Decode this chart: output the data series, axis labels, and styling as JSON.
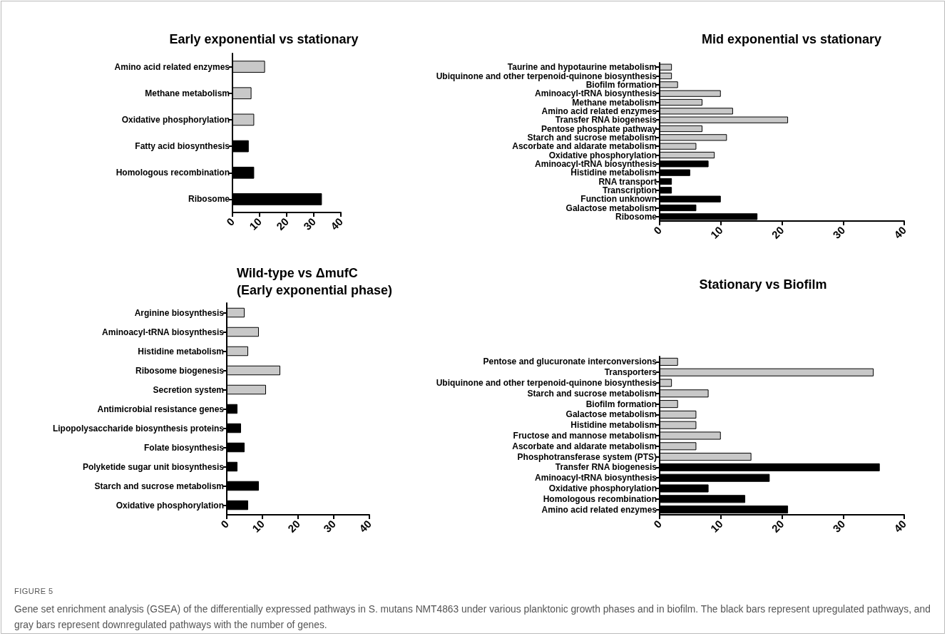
{
  "chart_data": [
    {
      "type": "bar",
      "orientation": "horizontal",
      "title": "Early exponential vs stationary",
      "categories": [
        "Amino acid related enzymes",
        "Methane metabolism",
        "Oxidative phosphorylation",
        "Fatty acid biosynthesis",
        "Homologous recombination",
        "Ribosome"
      ],
      "values": [
        12,
        7,
        8,
        6,
        8,
        33
      ],
      "colors": [
        "#c8c8c8",
        "#c8c8c8",
        "#c8c8c8",
        "#000000",
        "#000000",
        "#000000"
      ],
      "xlim": [
        0,
        40
      ],
      "xticks": [
        0,
        10,
        20,
        30,
        40
      ],
      "annotations": [
        "FIGURE 5",
        "Gene set enrichment analysis (GSEA) of the differentially expressed pathways in S. mutans NMT4863 under various planktonic growth phases and in biofilm. The black bars represent upregulated pathways, and gray bars represent downregulated pathways with the number of genes."
      ]
    },
    {
      "type": "bar",
      "orientation": "horizontal",
      "title": "Mid exponential vs stationary",
      "categories": [
        "Taurine and hypotaurine metabolism",
        "Ubiquinone and other terpenoid-quinone biosynthesis",
        "Biofilm formation",
        "Aminoacyl-tRNA biosynthesis",
        "Methane metabolism",
        "Amino acid related enzymes",
        "Transfer RNA biogenesis",
        "Pentose phosphate pathway",
        "Starch and sucrose metabolism",
        "Ascorbate and aldarate metabolism",
        "Oxidative phosphorylation",
        "Aminoacyl-tRNA biosynthesis",
        "Histidine metabolism",
        "RNA transport",
        "Transcription",
        "Function unknown",
        "Galactose metabolism",
        "Ribosome"
      ],
      "values": [
        2,
        2,
        3,
        10,
        7,
        12,
        21,
        7,
        11,
        6,
        9,
        8,
        5,
        2,
        2,
        10,
        6,
        16
      ],
      "colors": [
        "#c8c8c8",
        "#c8c8c8",
        "#c8c8c8",
        "#c8c8c8",
        "#c8c8c8",
        "#c8c8c8",
        "#c8c8c8",
        "#c8c8c8",
        "#c8c8c8",
        "#c8c8c8",
        "#c8c8c8",
        "#000000",
        "#000000",
        "#000000",
        "#000000",
        "#000000",
        "#000000",
        "#000000"
      ],
      "xlim": [
        0,
        40
      ],
      "xticks": [
        0,
        10,
        20,
        30,
        40
      ]
    },
    {
      "type": "bar",
      "orientation": "horizontal",
      "title": "Wild-type vs ΔmufC\n(Early exponential phase)",
      "categories": [
        "Arginine biosynthesis",
        "Aminoacyl-tRNA biosynthesis",
        "Histidine metabolism",
        "Ribosome biogenesis",
        "Secretion system",
        "Antimicrobial resistance genes",
        "Lipopolysaccharide biosynthesis proteins",
        "Folate biosynthesis",
        "Polyketide sugar unit biosynthesis",
        "Starch and sucrose metabolism",
        "Oxidative phosphorylation"
      ],
      "values": [
        5,
        9,
        6,
        15,
        11,
        3,
        4,
        5,
        3,
        9,
        6
      ],
      "colors": [
        "#c8c8c8",
        "#c8c8c8",
        "#c8c8c8",
        "#c8c8c8",
        "#c8c8c8",
        "#000000",
        "#000000",
        "#000000",
        "#000000",
        "#000000",
        "#000000"
      ],
      "xlim": [
        0,
        40
      ],
      "xticks": [
        0,
        10,
        20,
        30,
        40
      ]
    },
    {
      "type": "bar",
      "orientation": "horizontal",
      "title": "Stationary vs Biofilm",
      "categories": [
        "Pentose and glucuronate interconversions",
        "Transporters",
        "Ubiquinone and other terpenoid-quinone biosynthesis",
        "Starch and sucrose metabolism",
        "Biofilm formation",
        "Galactose metabolism",
        "Histidine metabolism",
        "Fructose and mannose metabolism",
        "Ascorbate and aldarate metabolism",
        "Phosphotransferase system (PTS)",
        "Transfer RNA biogenesis",
        "Aminoacyl-tRNA biosynthesis",
        "Oxidative phosphorylation",
        "Homologous recombination",
        "Amino acid related enzymes"
      ],
      "values": [
        3,
        35,
        2,
        8,
        3,
        6,
        6,
        10,
        6,
        15,
        36,
        18,
        8,
        14,
        21
      ],
      "colors": [
        "#c8c8c8",
        "#c8c8c8",
        "#c8c8c8",
        "#c8c8c8",
        "#c8c8c8",
        "#c8c8c8",
        "#c8c8c8",
        "#c8c8c8",
        "#c8c8c8",
        "#c8c8c8",
        "#000000",
        "#000000",
        "#000000",
        "#000000",
        "#000000"
      ],
      "xlim": [
        0,
        40
      ],
      "xticks": [
        0,
        10,
        20,
        30,
        40
      ]
    }
  ]
}
